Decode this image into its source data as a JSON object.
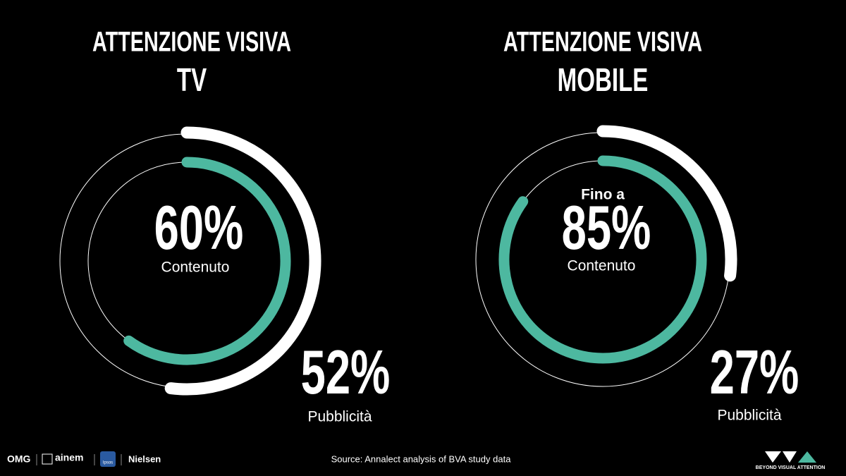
{
  "chart_data": [
    {
      "type": "radial",
      "title": "ATTENZIONE VISIVA",
      "subtitle": "TV",
      "ylim": [
        0,
        100
      ],
      "series": [
        {
          "name": "Contenuto",
          "color": "#4db8a0",
          "values": [
            60
          ],
          "value_labels": [
            "60%"
          ]
        },
        {
          "name": "Pubblicità",
          "color": "#ffffff",
          "values": [
            52
          ],
          "value_labels": [
            "52%"
          ]
        }
      ]
    },
    {
      "type": "radial",
      "title": "ATTENZIONE VISIVA",
      "subtitle": "MOBILE",
      "annotation": "Fino a",
      "ylim": [
        0,
        100
      ],
      "series": [
        {
          "name": "Contenuto",
          "color": "#4db8a0",
          "values": [
            85
          ],
          "value_labels": [
            "85%"
          ]
        },
        {
          "name": "Pubblicità",
          "color": "#ffffff",
          "values": [
            27
          ],
          "value_labels": [
            "27%"
          ]
        }
      ]
    }
  ],
  "footer": {
    "source": "Source: Annalect analysis of BVA study data",
    "logos": [
      "OMG",
      "ainem",
      "Ipsos",
      "Nielsen"
    ],
    "brand": "BEYOND VISUAL ATTENTION"
  }
}
